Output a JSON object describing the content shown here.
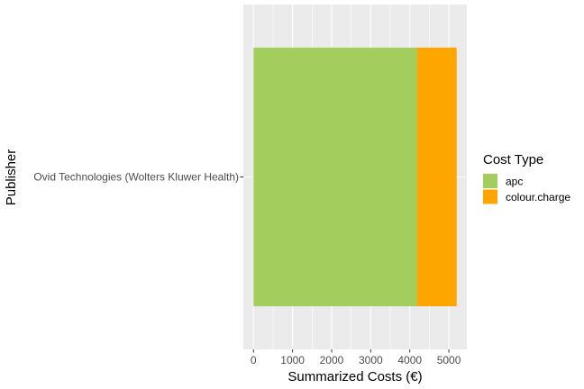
{
  "chart_data": {
    "type": "bar",
    "orientation": "horizontal",
    "stacked": true,
    "categories": [
      "Ovid Technologies (Wolters Kluwer Health)"
    ],
    "series": [
      {
        "name": "apc",
        "values": [
          4190
        ],
        "color": "#a3cd5d"
      },
      {
        "name": "colour.charge",
        "values": [
          1010
        ],
        "color": "#ffa500"
      }
    ],
    "xlabel": "Summarized Costs (€)",
    "ylabel": "Publisher",
    "xlim": [
      -260,
      5460
    ],
    "xticks": [
      0,
      1000,
      2000,
      3000,
      4000,
      5000
    ],
    "legend": {
      "title": "Cost Type",
      "position": "right"
    },
    "grid": true,
    "panel_background": "#ebebeb"
  }
}
